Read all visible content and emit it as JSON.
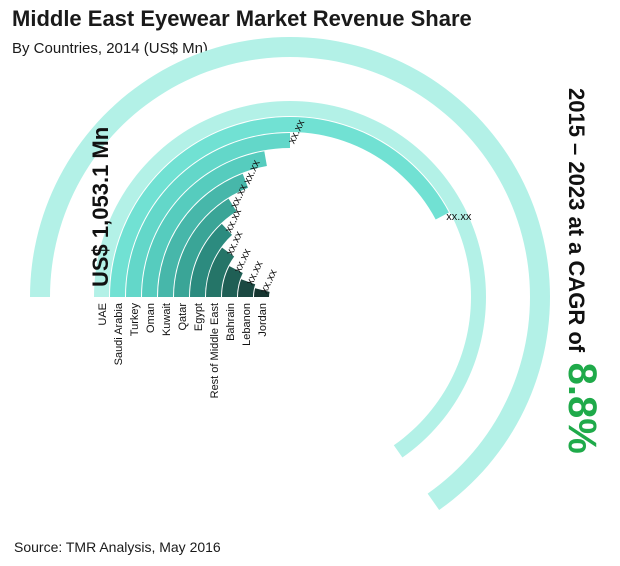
{
  "title": "Middle East Eyewear Market Revenue Share",
  "subtitle": "By Countries, 2014 (US$ Mn)",
  "source": "Source: TMR Analysis, May 2016",
  "colors": {
    "background": "#ffffff",
    "accent_green": "#1faa4a",
    "text": "#1a1a1a"
  },
  "chart_data": {
    "type": "radial-bar",
    "total_label": "US$ 1,053.1 Mn",
    "cagr_label_prefix": "2015 – 2023 at a CAGR of",
    "cagr_value": "8.8%",
    "categories": [
      "UAE",
      "Saudi Arabia",
      "Turkey",
      "Oman",
      "Kuwait",
      "Qatar",
      "Egypt",
      "Rest of Middle East",
      "Bahrain",
      "Lebanon",
      "Jordan"
    ],
    "data_labels": [
      "",
      "xx.xx",
      "xx.xx",
      "",
      "xx.xx",
      "xx.xx",
      "xx.xx",
      "xx.xx",
      "xx.xx",
      "xx.xx",
      "xx.xx"
    ],
    "sweep_degrees": [
      235,
      152,
      90,
      80,
      69,
      58,
      47,
      36,
      27,
      20,
      14
    ],
    "bar_colors": [
      "#b3f1e7",
      "#71e1d3",
      "#63d7c9",
      "#56ccbe",
      "#47b7aa",
      "#3aa597",
      "#2c8b7f",
      "#257568",
      "#1f5f55",
      "#1b4942",
      "#163530"
    ],
    "forecast_arc": {
      "sweep_degrees": 235
    }
  }
}
